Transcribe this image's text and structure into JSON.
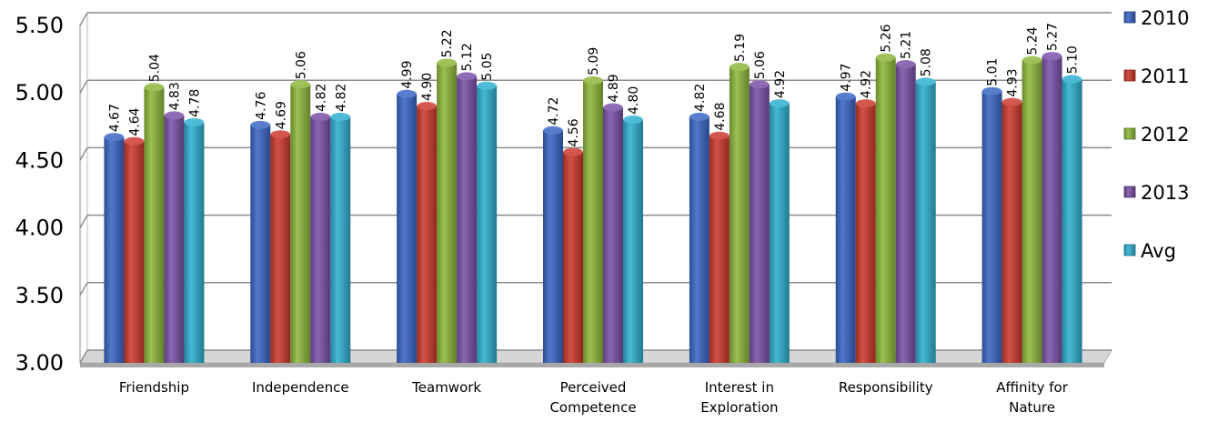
{
  "chart_data": {
    "type": "bar",
    "categories": [
      [
        "Friendship"
      ],
      [
        "Independence"
      ],
      [
        "Teamwork"
      ],
      [
        "Perceived",
        "Competence"
      ],
      [
        "Interest in",
        "Exploration"
      ],
      [
        "Responsibility"
      ],
      [
        "Affinity for",
        "Nature"
      ]
    ],
    "series": [
      {
        "name": "2010",
        "color": "#3a66c4",
        "values": [
          4.67,
          4.76,
          4.99,
          4.72,
          4.82,
          4.97,
          5.01
        ],
        "labels": [
          "4.67",
          "4.76",
          "4.99",
          "4.72",
          "4.82",
          "4.97",
          "5.01"
        ]
      },
      {
        "name": "2011",
        "color": "#cc3a2e",
        "values": [
          4.64,
          4.69,
          4.9,
          4.56,
          4.68,
          4.92,
          4.93
        ],
        "labels": [
          "4.64",
          "4.69",
          "4.90",
          "4.56",
          "4.68",
          "4.92",
          "4.93"
        ]
      },
      {
        "name": "2012",
        "color": "#8db73c",
        "values": [
          5.04,
          5.06,
          5.22,
          5.09,
          5.19,
          5.26,
          5.24
        ],
        "labels": [
          "5.04",
          "5.06",
          "5.22",
          "5.09",
          "5.19",
          "5.26",
          "5.24"
        ]
      },
      {
        "name": "2013",
        "color": "#7a52a8",
        "values": [
          4.83,
          4.82,
          5.12,
          4.89,
          5.06,
          5.21,
          5.27
        ],
        "labels": [
          "4.83",
          "4.82",
          "5.12",
          "4.89",
          "5.06",
          "5.21",
          "5.27"
        ]
      },
      {
        "name": "Avg",
        "color": "#2fb0cf",
        "values": [
          4.78,
          4.82,
          5.05,
          4.8,
          4.92,
          5.08,
          5.1
        ],
        "labels": [
          "4.78",
          "4.82",
          "5.05",
          "4.80",
          "4.92",
          "5.08",
          "5.10"
        ]
      }
    ],
    "ylim": [
      3.0,
      5.5
    ],
    "yticks": [
      "3.00",
      "3.50",
      "4.00",
      "4.50",
      "5.00",
      "5.50"
    ],
    "grid": true,
    "legend_position": "right",
    "title": "",
    "xlabel": "",
    "ylabel": ""
  }
}
